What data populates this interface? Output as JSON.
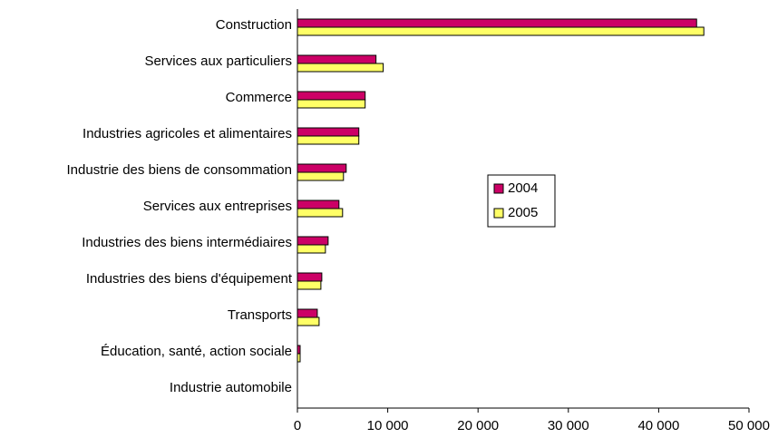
{
  "chart_data": {
    "type": "bar",
    "orientation": "horizontal",
    "categories": [
      "Construction",
      "Services aux particuliers",
      "Commerce",
      "Industries agricoles et alimentaires",
      "Industrie des biens de consommation",
      "Services aux entreprises",
      "Industries des biens intermédiaires",
      "Industries des biens d'équipement",
      "Transports",
      "Éducation, santé, action sociale",
      "Industrie automobile"
    ],
    "series": [
      {
        "name": "2004",
        "color": "#cc0066",
        "values": [
          44200,
          8700,
          7500,
          6800,
          5400,
          4600,
          3400,
          2700,
          2200,
          300,
          0
        ]
      },
      {
        "name": "2005",
        "color": "#ffff66",
        "values": [
          45000,
          9500,
          7500,
          6800,
          5100,
          5000,
          3100,
          2600,
          2400,
          300,
          0
        ]
      }
    ],
    "xlim": [
      0,
      50000
    ],
    "xticks": [
      0,
      {
        "value": 10000,
        "label": "10 000"
      },
      {
        "value": 20000,
        "label": "20 000"
      },
      {
        "value": 30000,
        "label": "30 000"
      },
      {
        "value": 40000,
        "label": "40 000"
      },
      {
        "value": 50000,
        "label": "50 000"
      }
    ],
    "legend": "right",
    "grid": false
  }
}
